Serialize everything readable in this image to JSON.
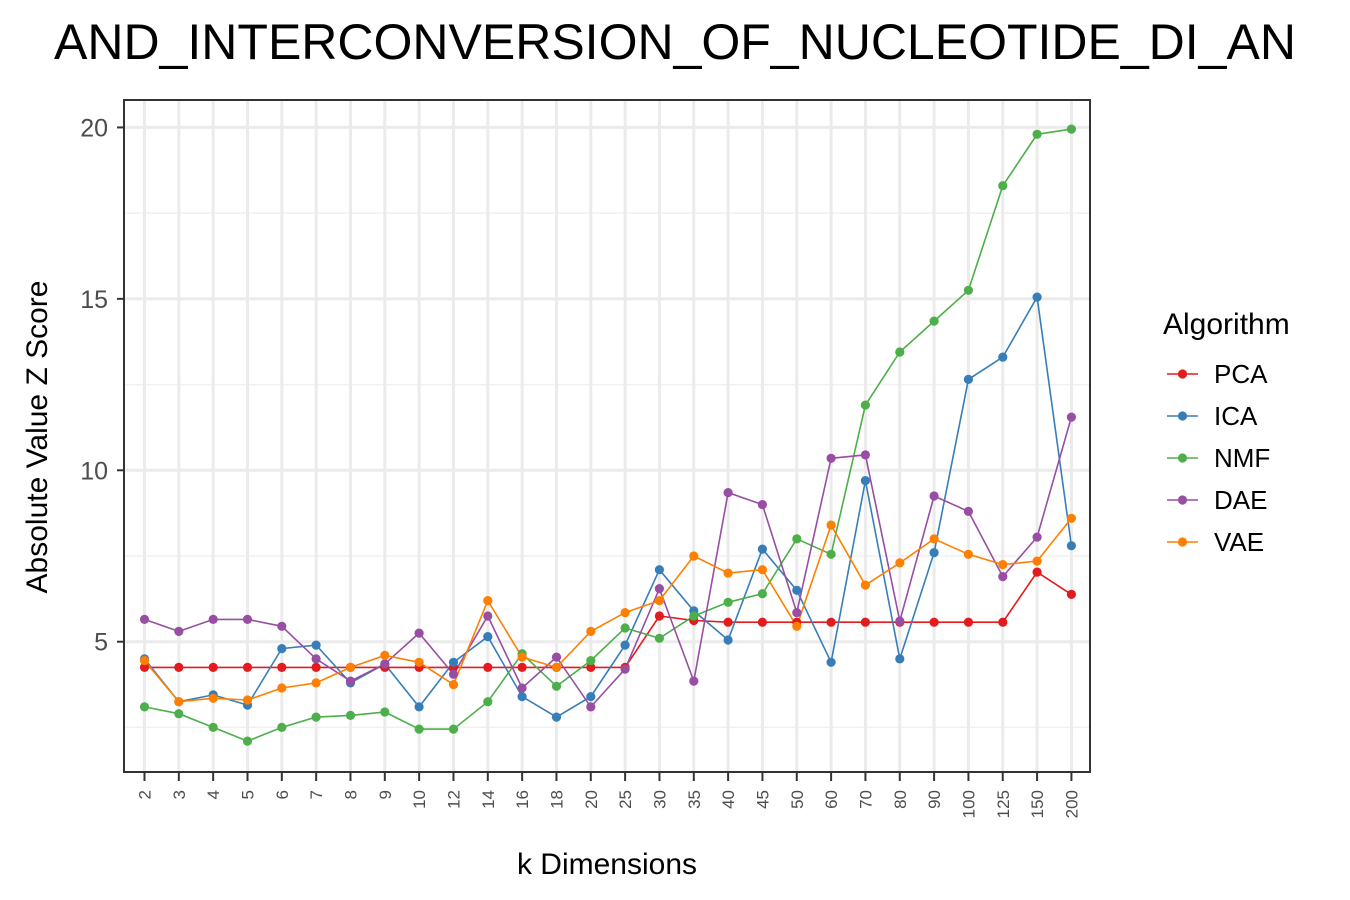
{
  "chart_data": {
    "type": "line",
    "title": "AND_INTERCONVERSION_OF_NUCLEOTIDE_DI_AN",
    "xlabel": "k Dimensions",
    "ylabel": "Absolute Value Z Score",
    "categories": [
      "2",
      "3",
      "4",
      "5",
      "6",
      "7",
      "8",
      "9",
      "10",
      "12",
      "14",
      "16",
      "18",
      "20",
      "25",
      "30",
      "35",
      "40",
      "45",
      "50",
      "60",
      "70",
      "80",
      "90",
      "100",
      "125",
      "150",
      "200"
    ],
    "ylim": [
      1.2,
      20.8
    ],
    "yticks": [
      5,
      10,
      15,
      20
    ],
    "grid": true,
    "legend": {
      "title": "Algorithm",
      "position": "right"
    },
    "series": [
      {
        "name": "PCA",
        "color": "#e41a1c",
        "values": [
          4.25,
          4.25,
          4.25,
          4.25,
          4.25,
          4.25,
          4.25,
          4.25,
          4.25,
          4.25,
          4.25,
          4.25,
          4.25,
          4.25,
          4.25,
          5.75,
          5.62,
          5.57,
          5.57,
          5.57,
          5.57,
          5.57,
          5.57,
          5.57,
          5.57,
          5.57,
          7.03,
          6.38
        ]
      },
      {
        "name": "ICA",
        "color": "#377eb8",
        "values": [
          4.5,
          3.25,
          3.45,
          3.15,
          4.8,
          4.9,
          3.8,
          4.35,
          3.1,
          4.4,
          5.15,
          3.4,
          2.8,
          3.4,
          4.9,
          7.1,
          5.9,
          5.05,
          7.7,
          6.5,
          4.4,
          9.7,
          4.5,
          7.6,
          12.65,
          13.3,
          15.05,
          7.8
        ]
      },
      {
        "name": "NMF",
        "color": "#4daf4a",
        "values": [
          3.1,
          2.9,
          2.5,
          2.1,
          2.5,
          2.8,
          2.85,
          2.95,
          2.45,
          2.45,
          3.25,
          4.65,
          3.7,
          4.45,
          5.4,
          5.1,
          5.75,
          6.15,
          6.4,
          8.0,
          7.55,
          11.9,
          13.45,
          14.35,
          15.25,
          18.3,
          19.8,
          19.95
        ]
      },
      {
        "name": "DAE",
        "color": "#984ea3",
        "values": [
          5.65,
          5.3,
          5.65,
          5.65,
          5.45,
          4.5,
          3.85,
          4.35,
          5.25,
          4.05,
          5.75,
          3.65,
          4.55,
          3.1,
          4.2,
          6.55,
          3.85,
          9.35,
          9.0,
          5.85,
          10.35,
          10.45,
          5.6,
          9.25,
          8.8,
          6.9,
          8.05,
          11.55
        ]
      },
      {
        "name": "VAE",
        "color": "#ff7f00",
        "values": [
          4.45,
          3.25,
          3.35,
          3.3,
          3.65,
          3.8,
          4.25,
          4.6,
          4.4,
          3.75,
          6.2,
          4.55,
          4.25,
          5.3,
          5.85,
          6.2,
          7.5,
          7.0,
          7.1,
          5.45,
          8.4,
          6.65,
          7.3,
          8.0,
          7.55,
          7.25,
          7.35,
          8.6
        ]
      }
    ]
  }
}
